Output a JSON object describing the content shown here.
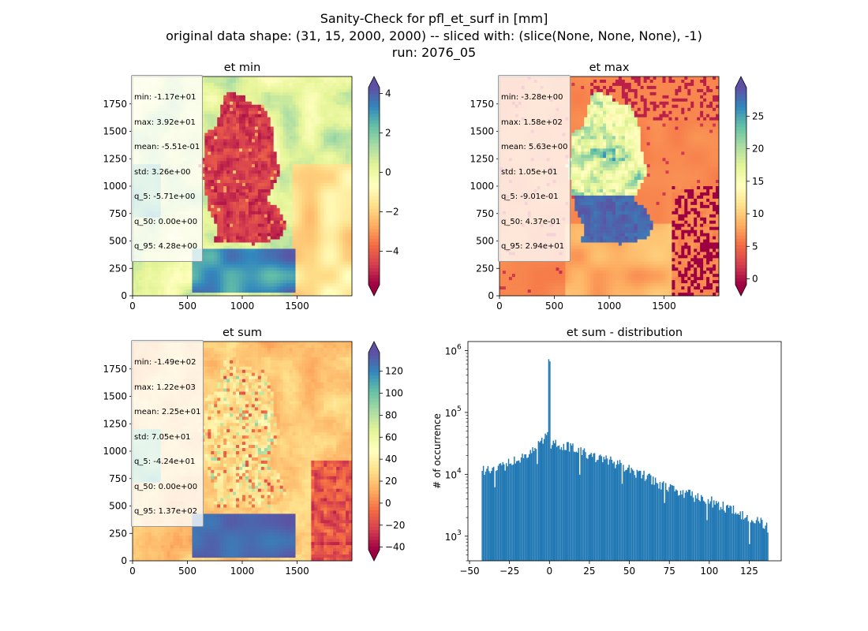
{
  "figure": {
    "title_lines": [
      "Sanity-Check for pfl_et_surf in [mm]",
      "original data shape: (31, 15, 2000, 2000) -- sliced with: (slice(None, None, None), -1)",
      "run: 2076_05"
    ]
  },
  "colors": {
    "spectral": [
      "#9e0142",
      "#d53e4f",
      "#f46d43",
      "#fdae61",
      "#fee08b",
      "#ffffbf",
      "#e6f598",
      "#abdda4",
      "#66c2a5",
      "#3288bd",
      "#5e4fa2"
    ],
    "histogram_bar": "#1f77b4"
  },
  "chart_data": [
    {
      "type": "heatmap",
      "title": "et min",
      "xlim": [
        0,
        2000
      ],
      "ylim": [
        0,
        2000
      ],
      "xticks": [
        "0",
        "500",
        "1000",
        "1500"
      ],
      "yticks": [
        "0",
        "250",
        "500",
        "750",
        "1000",
        "1250",
        "1500",
        "1750"
      ],
      "colorbar": {
        "range": [
          -5.7,
          4.3
        ],
        "ticks": [
          "−4",
          "−2",
          "0",
          "2",
          "4"
        ],
        "tick_values": [
          -4,
          -2,
          0,
          2,
          4
        ],
        "extend": "both",
        "cmap": "Spectral"
      },
      "stats": [
        "min: -1.17e+01",
        "max: 3.92e+01",
        "mean: -5.51e-01",
        "std: 3.26e+00",
        "q_5: -5.71e+00",
        "q_50: 0.00e+00",
        "q_95: 4.28e+00"
      ]
    },
    {
      "type": "heatmap",
      "title": "et max",
      "xlim": [
        0,
        2000
      ],
      "ylim": [
        0,
        2000
      ],
      "xticks": [
        "0",
        "500",
        "1000",
        "1500"
      ],
      "yticks": [
        "0",
        "250",
        "500",
        "750",
        "1000",
        "1250",
        "1500",
        "1750"
      ],
      "colorbar": {
        "range": [
          -0.9,
          29.4
        ],
        "ticks": [
          "0",
          "5",
          "10",
          "15",
          "20",
          "25"
        ],
        "tick_values": [
          0,
          5,
          10,
          15,
          20,
          25
        ],
        "extend": "both",
        "cmap": "Spectral"
      },
      "stats": [
        "min: -3.28e+00",
        "max: 1.58e+02",
        "mean: 5.63e+00",
        "std: 1.05e+01",
        "q_5: -9.01e-01",
        "q_50: 4.37e-01",
        "q_95: 2.94e+01"
      ]
    },
    {
      "type": "heatmap",
      "title": "et sum",
      "xlim": [
        0,
        2000
      ],
      "ylim": [
        0,
        2000
      ],
      "xticks": [
        "0",
        "500",
        "1000",
        "1500"
      ],
      "yticks": [
        "0",
        "250",
        "500",
        "750",
        "1000",
        "1250",
        "1500",
        "1750"
      ],
      "colorbar": {
        "range": [
          -42.4,
          137
        ],
        "ticks": [
          "−40",
          "−20",
          "0",
          "20",
          "40",
          "60",
          "80",
          "100",
          "120"
        ],
        "tick_values": [
          -40,
          -20,
          0,
          20,
          40,
          60,
          80,
          100,
          120
        ],
        "extend": "both",
        "cmap": "Spectral"
      },
      "stats": [
        "min: -1.49e+02",
        "max: 1.22e+03",
        "mean: 2.25e+01",
        "std: 7.05e+01",
        "q_5: -4.24e+01",
        "q_50: 0.00e+00",
        "q_95: 1.37e+02"
      ]
    },
    {
      "type": "bar",
      "title": "et sum - distribution",
      "ylabel": "# of occurrence",
      "xlim": [
        -51,
        145
      ],
      "ylog": true,
      "ylim": [
        400,
        1400000
      ],
      "xticks": [
        "−50",
        "−25",
        "0",
        "25",
        "50",
        "75",
        "100",
        "125"
      ],
      "xtick_values": [
        -50,
        -25,
        0,
        25,
        50,
        75,
        100,
        125
      ],
      "yticks": [
        "10",
        "10",
        "10",
        "10"
      ],
      "ytick_exponents": [
        "3",
        "4",
        "5",
        "6"
      ],
      "ytick_values": [
        1000,
        10000,
        100000,
        1000000
      ],
      "bins": {
        "start": -42.4,
        "end": 137,
        "count": 250
      },
      "profile": [
        [
          -42.4,
          11000
        ],
        [
          -40,
          12500
        ],
        [
          -30,
          13500
        ],
        [
          -20,
          17000
        ],
        [
          -10,
          26000
        ],
        [
          -3,
          38000
        ],
        [
          -1,
          45000
        ],
        [
          0,
          830000
        ],
        [
          1,
          32000
        ],
        [
          10,
          30000
        ],
        [
          20,
          23000
        ],
        [
          30,
          18000
        ],
        [
          40,
          16000
        ],
        [
          50,
          12000
        ],
        [
          60,
          9500
        ],
        [
          70,
          7000
        ],
        [
          80,
          5500
        ],
        [
          90,
          4500
        ],
        [
          100,
          3800
        ],
        [
          110,
          3000
        ],
        [
          120,
          2300
        ],
        [
          130,
          1800
        ],
        [
          137,
          1400
        ]
      ]
    }
  ]
}
